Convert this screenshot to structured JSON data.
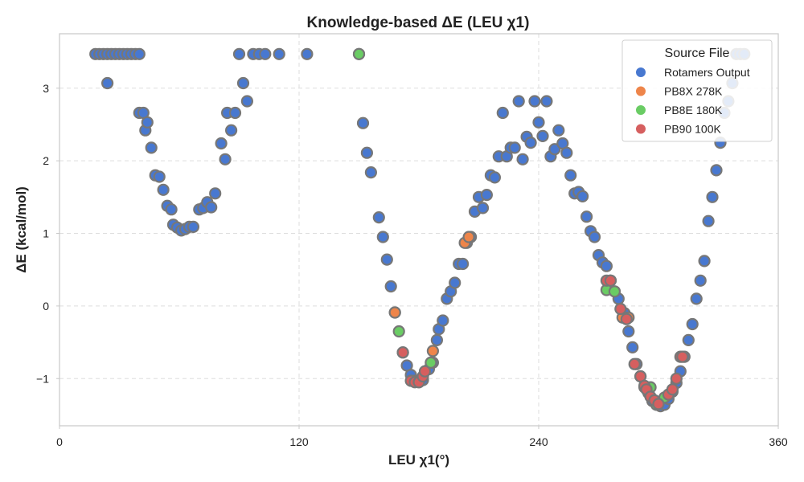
{
  "chart_data": {
    "type": "scatter",
    "title": "Knowledge-based ΔE (LEU χ1)",
    "xlabel": "LEU χ1(°)",
    "ylabel": "ΔE (kcal/mol)",
    "xlim": [
      0,
      360
    ],
    "ylim": [
      -1.65,
      3.75
    ],
    "x_ticks": [
      0,
      120,
      240,
      360
    ],
    "x_tick_labels": [
      "0",
      "120",
      "240",
      "360"
    ],
    "y_ticks": [
      -1,
      0,
      1,
      2,
      3
    ],
    "y_tick_labels": [
      "−1",
      "0",
      "1",
      "2",
      "3"
    ],
    "grid": true,
    "legend": {
      "title": "Source File",
      "position": "top-right"
    },
    "series": [
      {
        "name": "Rotamers Output",
        "color": "#4878d0",
        "points": [
          [
            18,
            3.47
          ],
          [
            20,
            3.47
          ],
          [
            22,
            3.47
          ],
          [
            24,
            3.47
          ],
          [
            26,
            3.47
          ],
          [
            28,
            3.47
          ],
          [
            30,
            3.47
          ],
          [
            32,
            3.47
          ],
          [
            34,
            3.47
          ],
          [
            36,
            3.47
          ],
          [
            38,
            3.47
          ],
          [
            40,
            3.47
          ],
          [
            24,
            3.07
          ],
          [
            40,
            2.66
          ],
          [
            42,
            2.66
          ],
          [
            43,
            2.42
          ],
          [
            44,
            2.53
          ],
          [
            46,
            2.18
          ],
          [
            48,
            1.8
          ],
          [
            50,
            1.78
          ],
          [
            52,
            1.6
          ],
          [
            54,
            1.38
          ],
          [
            56,
            1.33
          ],
          [
            57,
            1.12
          ],
          [
            59,
            1.08
          ],
          [
            61,
            1.04
          ],
          [
            63,
            1.06
          ],
          [
            65,
            1.09
          ],
          [
            67,
            1.09
          ],
          [
            70,
            1.33
          ],
          [
            72,
            1.35
          ],
          [
            74,
            1.43
          ],
          [
            76,
            1.36
          ],
          [
            78,
            1.55
          ],
          [
            81,
            2.24
          ],
          [
            83,
            2.02
          ],
          [
            84,
            2.66
          ],
          [
            86,
            2.42
          ],
          [
            88,
            2.66
          ],
          [
            90,
            3.47
          ],
          [
            92,
            3.07
          ],
          [
            94,
            2.82
          ],
          [
            97,
            3.47
          ],
          [
            100,
            3.47
          ],
          [
            103,
            3.47
          ],
          [
            110,
            3.47
          ],
          [
            124,
            3.47
          ],
          [
            150,
            3.47
          ],
          [
            152,
            2.52
          ],
          [
            154,
            2.11
          ],
          [
            156,
            1.84
          ],
          [
            160,
            1.22
          ],
          [
            162,
            0.95
          ],
          [
            164,
            0.64
          ],
          [
            166,
            0.27
          ],
          [
            168,
            -0.09
          ],
          [
            172,
            -0.64
          ],
          [
            174,
            -0.82
          ],
          [
            176,
            -0.95
          ],
          [
            178,
            -1.03
          ],
          [
            180,
            -1.05
          ],
          [
            182,
            -1.02
          ],
          [
            185,
            -0.87
          ],
          [
            187,
            -0.78
          ],
          [
            189,
            -0.47
          ],
          [
            190,
            -0.32
          ],
          [
            192,
            -0.2
          ],
          [
            194,
            0.1
          ],
          [
            196,
            0.2
          ],
          [
            198,
            0.32
          ],
          [
            200,
            0.58
          ],
          [
            202,
            0.58
          ],
          [
            204,
            0.87
          ],
          [
            206,
            0.95
          ],
          [
            208,
            1.3
          ],
          [
            210,
            1.5
          ],
          [
            212,
            1.35
          ],
          [
            214,
            1.53
          ],
          [
            216,
            1.8
          ],
          [
            218,
            1.77
          ],
          [
            220,
            2.06
          ],
          [
            222,
            2.66
          ],
          [
            224,
            2.06
          ],
          [
            226,
            2.18
          ],
          [
            228,
            2.18
          ],
          [
            230,
            2.82
          ],
          [
            232,
            2.02
          ],
          [
            234,
            2.33
          ],
          [
            236,
            2.25
          ],
          [
            238,
            2.82
          ],
          [
            240,
            2.53
          ],
          [
            242,
            2.34
          ],
          [
            244,
            2.82
          ],
          [
            246,
            2.06
          ],
          [
            248,
            2.16
          ],
          [
            250,
            2.42
          ],
          [
            252,
            2.24
          ],
          [
            254,
            2.11
          ],
          [
            256,
            1.8
          ],
          [
            258,
            1.55
          ],
          [
            260,
            1.57
          ],
          [
            262,
            1.51
          ],
          [
            264,
            1.23
          ],
          [
            266,
            1.03
          ],
          [
            268,
            0.95
          ],
          [
            270,
            0.7
          ],
          [
            272,
            0.6
          ],
          [
            274,
            0.55
          ],
          [
            276,
            0.35
          ],
          [
            278,
            0.2
          ],
          [
            280,
            0.1
          ],
          [
            283,
            -0.1
          ],
          [
            285,
            -0.35
          ],
          [
            287,
            -0.57
          ],
          [
            289,
            -0.8
          ],
          [
            291,
            -0.97
          ],
          [
            293,
            -1.12
          ],
          [
            295,
            -1.2
          ],
          [
            297,
            -1.31
          ],
          [
            299,
            -1.36
          ],
          [
            301,
            -1.38
          ],
          [
            303,
            -1.36
          ],
          [
            305,
            -1.28
          ],
          [
            307,
            -1.18
          ],
          [
            309,
            -1.06
          ],
          [
            311,
            -0.9
          ],
          [
            313,
            -0.7
          ],
          [
            315,
            -0.47
          ],
          [
            317,
            -0.25
          ],
          [
            319,
            0.1
          ],
          [
            321,
            0.35
          ],
          [
            323,
            0.62
          ],
          [
            325,
            1.17
          ],
          [
            327,
            1.5
          ],
          [
            329,
            1.87
          ],
          [
            331,
            2.25
          ],
          [
            333,
            2.66
          ],
          [
            335,
            2.82
          ],
          [
            337,
            3.07
          ],
          [
            339,
            3.47
          ],
          [
            341,
            3.47
          ],
          [
            343,
            3.47
          ]
        ]
      },
      {
        "name": "PB8X 278K",
        "color": "#ee854a",
        "points": [
          [
            168,
            -0.09
          ],
          [
            187,
            -0.62
          ],
          [
            203,
            0.87
          ],
          [
            205,
            0.95
          ],
          [
            276,
            0.35
          ],
          [
            282,
            -0.16
          ],
          [
            285,
            -0.16
          ]
        ]
      },
      {
        "name": "PB8E 180K",
        "color": "#6acc64",
        "points": [
          [
            150,
            3.47
          ],
          [
            170,
            -0.35
          ],
          [
            186,
            -0.78
          ],
          [
            274,
            0.22
          ],
          [
            278,
            0.2
          ],
          [
            296,
            -1.12
          ],
          [
            299,
            -1.36
          ],
          [
            303,
            -1.26
          ]
        ]
      },
      {
        "name": "PB90 100K",
        "color": "#d65f5f",
        "points": [
          [
            172,
            -0.64
          ],
          [
            176,
            -1.03
          ],
          [
            178,
            -1.05
          ],
          [
            180,
            -1.05
          ],
          [
            182,
            -0.97
          ],
          [
            183,
            -0.9
          ],
          [
            274,
            0.35
          ],
          [
            276,
            0.35
          ],
          [
            281,
            -0.04
          ],
          [
            284,
            -0.18
          ],
          [
            288,
            -0.8
          ],
          [
            291,
            -0.97
          ],
          [
            293,
            -1.1
          ],
          [
            294,
            -1.15
          ],
          [
            296,
            -1.25
          ],
          [
            298,
            -1.3
          ],
          [
            300,
            -1.35
          ],
          [
            305,
            -1.22
          ],
          [
            307,
            -1.15
          ],
          [
            309,
            -1.0
          ],
          [
            311,
            -0.7
          ],
          [
            312,
            -0.7
          ]
        ]
      }
    ]
  }
}
